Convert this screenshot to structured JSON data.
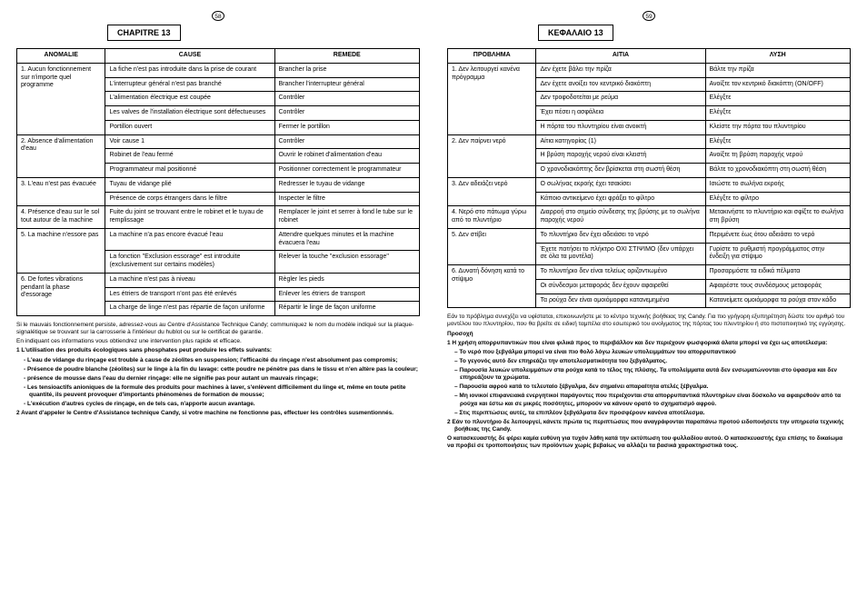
{
  "left": {
    "pageNum": "58",
    "chapter": "CHAPITRE 13",
    "headers": [
      "ANOMALIE",
      "CAUSE",
      "REMEDE"
    ],
    "rows": [
      {
        "p": "1. Aucun fonctionnement sur n'importe quel programme",
        "items": [
          {
            "c": "La fiche n'est pas introduite dans la prise de courant",
            "r": "Brancher la prise"
          },
          {
            "c": "L'interrupteur général n'est pas branché",
            "r": "Brancher l'interrupteur général"
          },
          {
            "c": "L'alimentation électrique est coupée",
            "r": "Contrôler"
          },
          {
            "c": "Les valves de l'installation électrique sont défectueuses",
            "r": "Contrôler"
          },
          {
            "c": "Portillon ouvert",
            "r": "Fermer le portillon"
          }
        ]
      },
      {
        "p": "2. Absence d'alimentation d'eau",
        "items": [
          {
            "c": "Voir cause 1",
            "r": "Contrôler"
          },
          {
            "c": "Robinet de l'eau fermé",
            "r": "Ouvrir le robinet d'alimentation d'eau"
          },
          {
            "c": "Programmateur mal positionné",
            "r": "Positionner correctement le programmateur"
          }
        ]
      },
      {
        "p": "3. L'eau n'est pas évacuée",
        "items": [
          {
            "c": "Tuyau de vidange plié",
            "r": "Redresser le tuyau de vidange"
          },
          {
            "c": "Présence de corps étrangers dans le filtre",
            "r": "Inspecter le filtre"
          }
        ]
      },
      {
        "p": "4. Présence d'eau sur le sol tout autour de la machine",
        "items": [
          {
            "c": "Fuite du joint se trouvant entre le robinet et le tuyau de remplissage",
            "r": "Remplacer le joint et serrer à fond le tube sur le robinet"
          }
        ]
      },
      {
        "p": "5. La machine n'essore pas",
        "items": [
          {
            "c": "La machine n'a pas encore évacué l'eau",
            "r": "Attendre quelques minutes et la machine évacuera l'eau"
          },
          {
            "c": "La fonction \"Exclusion essorage\" est introduite (exclusivement sur certains modèles)",
            "r": "Relever la touche \"exclusion essorage\""
          }
        ]
      },
      {
        "p": "6. De fortes vibrations pendant la phase d'essorage",
        "items": [
          {
            "c": "La machine n'est pas à niveau",
            "r": "Règler les pieds"
          },
          {
            "c": "Les étriers de transport n'ont pas été enlevés",
            "r": "Enlever les étriers de transport"
          },
          {
            "c": "La charge de linge n'est pas répartie de façon uniforme",
            "r": "Répartir le linge de façon uniforme"
          }
        ]
      }
    ],
    "para1": "Si le mauvais fonctionnement persiste, adressez-vous au Centre d'Assistance Technique Candy; communiquez le nom du modèle indiqué sur la plaque-signalétique se trouvant sur la carrosserie à l'intérieur du hublot ou sur le certificat de garantie.",
    "para2": "En indiquant ces informations vous obtiendrez une intervention plus rapide et efficace.",
    "n1": "1 L'utilisation des produits écologiques sans phosphates peut produire les effets suivants:",
    "b1": "- L'eau de vidange du rinçage est trouble à cause de zéolites en suspension; l'efficacité du rinçage n'est absolument pas compromis;",
    "b2": "- Présence de poudre blanche (zéolites) sur le linge à la fin du lavage: cette poudre ne pénètre pas dans le tissu et n'en altère pas la couleur;",
    "b3": "- présence de mousse dans l'eau du dernier rinçage: elle ne signifie pas pour autant un mauvais rinçage;",
    "b4": "- Les tensioactifs anioniques de la formule des produits pour machines à laver, s'enlèvent difficilement du linge et, même en toute petite quantité, ils peuvent provoquer d'importants phénomènes de formation de mousse;",
    "b5": "- L'exécution d'autres cycles de rinçage, en de tels cas, n'apporte aucun avantage.",
    "n2": "2 Avant d'appeler le Centre d'Assistance technique Candy, si votre machine ne fonctionne pas, effectuer les contrôles susmentionnés."
  },
  "right": {
    "pageNum": "59",
    "chapter": "ΚΕΦΑΛΑΙΟ 13",
    "headers": [
      "ΠΡΟΒΛΗΜΑ",
      "ΑΙΤΙΑ",
      "ΛΥΣΗ"
    ],
    "rows": [
      {
        "p": "1. Δεν λειτουργεί κανένα πρόγραμμα",
        "items": [
          {
            "c": "Δεν έχετε βάλει την πρίζα",
            "r": "Βάλτε την πρίζα"
          },
          {
            "c": "Δεν έχετε ανοίξει τον κεντρικό διακόπτη",
            "r": "Ανοίξτε τον κεντρικό διακόπτη (ON/OFF)"
          },
          {
            "c": "Δεν τροφοδοτείται με ρεύμα",
            "r": "Ελέγξτε"
          },
          {
            "c": "Έχει πέσει η ασφάλεια",
            "r": "Ελέγξτε"
          },
          {
            "c": "Η πόρτα του πλυντηρίου είναι ανοικτή",
            "r": "Κλείστε την πόρτα του πλυντηρίου"
          }
        ]
      },
      {
        "p": "2. Δεν παίρνει νερό",
        "items": [
          {
            "c": "Αίτια κατηγορίας (1)",
            "r": "Ελέγξτε"
          },
          {
            "c": "Η βρύση παροχής νερού είναι κλειστή",
            "r": "Ανοίξτε τη βρύση παροχής νερού"
          },
          {
            "c": "Ο χρονοδιακόπτης δεν βρίσκεται στη σωστή θέση",
            "r": "Βάλτε το χρονοδιακόπτη στη σωστή θέση"
          }
        ]
      },
      {
        "p": "3. Δεν αδειάζει νερό",
        "items": [
          {
            "c": "Ο σωλήνας εκροής έχει τσακίσει",
            "r": "Ισιώστε το σωλήνα εκροής"
          },
          {
            "c": "Κάποιο αντικείμενο έχει φράξει το φίλτρο",
            "r": "Ελέγξτε το φίλτρο"
          }
        ]
      },
      {
        "p": "4. Νερό στο πάτωμα γύρω από το πλυντήριο",
        "items": [
          {
            "c": "Διαρροή στο σημείο σύνδεσης της βρύσης με το σωλήνα παροχής νερού",
            "r": "Μετακινήστε το πλυντήριο και σφίξτε το σωλήνα στη βρύση"
          }
        ]
      },
      {
        "p": "5. Δεν στίβει",
        "items": [
          {
            "c": "Το πλυντήριο δεν έχει αδειάσει το νερό",
            "r": "Περιμένετε έως ότου αδειάσει το νερό"
          },
          {
            "c": "Έχετε πατήσει το πλήκτρο  ΟΧΙ ΣΤΙΨΙΜΟ (δεν υπάρχει σε όλα τα μοντέλα)",
            "r": "Γυρίστε το ρυθμιστή προγράμματος στην ένδειξη για στίψιμο"
          }
        ]
      },
      {
        "p": "6. Δυνατή δόνηση κατά το στίψιμο",
        "items": [
          {
            "c": "Το πλυντήριο δεν είναι τελείως οριζοντιωμένο",
            "r": "Προσαρμόστε τα ειδικά πέλματα"
          },
          {
            "c": "Οι σύνδεσμοι μεταφοράς δεν έχουν αφαιρεθεί",
            "r": "Αφαιρέστε τους συνδέσμους μεταφοράς"
          },
          {
            "c": "Τα ρούχα δεν είναι ομοιόμορφα κατανεμημένα",
            "r": "Κατανείμετε ομοιόμορφα τα ρούχα στον κάδο"
          }
        ]
      }
    ],
    "para1": "Εάν το πρόβλημα συνεχίζει να υφίσταται, επικοινωνήστε με το κέντρο τεχνικής βοήθειας της Candy. Για πιο γρήγορη εξυπηρέτηση δώστε τον αριθμό του μοντέλου του πλυντηρίου, που θα βρείτε σε ειδική ταμπέλα στο εσωτερικό του ανοίγματος της πόρτας του πλυντηρίου ή στο πιστοποιητικό της εγγύησης.",
    "att": "Προσοχή",
    "n1": "1  Η χρήση απορρυπαντικών που είναι φιλικά προς το περιβάλλον και δεν περιέχουν φωσφορικά άλατα μπορεί να έχει ως αποτέλεσμα:",
    "b1": "– Το νερό που ξεβγάλμα μπορεί να είναι πιο θολό λόγω λευκών υπολειμμάτων του απορρυπαντικού",
    "b2": "– Το γεγονός αυτό δεν επηρεάζει την αποτελεσματικότητα του ξεβγάλματος.",
    "b3": "– Παρουσία λευκών υπολειμμάτων στα ρούχα κατά το τέλος της πλύσης. Τα υπολείμματα αυτά δεν ενσωματώνονται στο ύφασμα και δεν επηρεάζουν τα χρώματα.",
    "b4": "– Παρουσία αφρού κατά το τελευταίο ξέβγαλμα, δεν σημαίνει απαραίτητα ατελές ξέβγαλμα.",
    "b5": "– Μη ιονικοί επιφανειακά ενεργητικοί παράγοντες που περιέχονται στα απορρυπαντικά πλυντηρίων είναι δύσκολο να αφαιρεθούν από τα ρούχα και έστω και σε μικρές ποσότητες, μπορούν να κάνουν ορατό το σχηματισμό αφρού.",
    "b6": "– Στις περιπτώσεις αυτές, τα επιπλέον ξεβγάλματα δεν προσφέρουν κανένα αποτέλεσμα.",
    "n2": "2  Εάν το πλυντήριο δε λειτουργεί, κάνετε πρώτα τις περιπτώσεις που αναγράφονται παραπάνω προτού ειδοποιήσετε την υπηρεσία τεχνικής βοήθειας της Candy.",
    "foot": "Ο κατασκευαστής δε φέρει καμία ευθύνη για τυχόν λάθη κατά την εκτύπωση του φυλλαδίου αυτού. Ο κατασκευαστής έχει επίσης το δικαίωμα να προβεί σε τροποποιήσεις των προϊόντων χωρίς βεβαίως να αλλάζει τα βασικά χαρακτηριστικά τους."
  }
}
